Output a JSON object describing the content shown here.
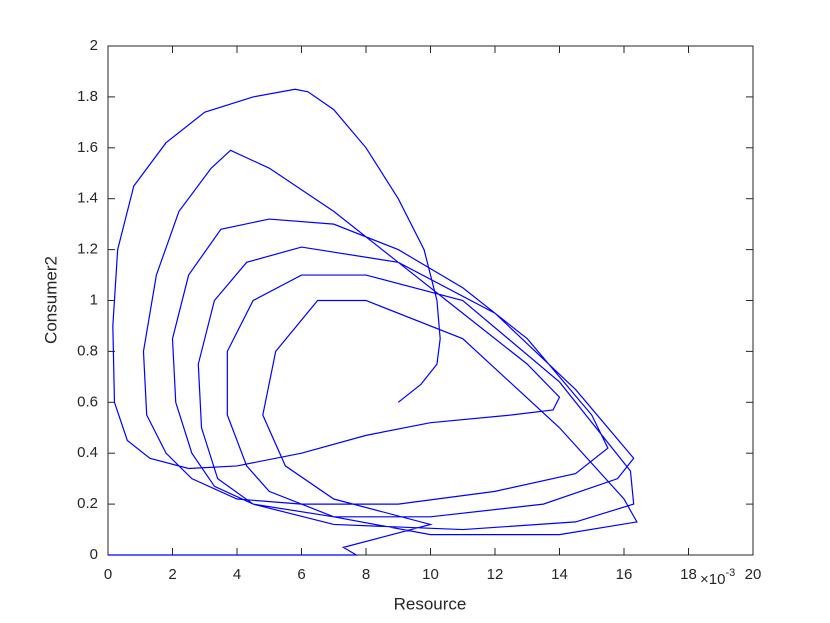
{
  "chart_data": {
    "type": "line",
    "x_label": "Resource",
    "y_label": "Consumer2",
    "x_multiplier": {
      "base": "×10",
      "exponent": "-3"
    },
    "xlim": [
      0,
      20
    ],
    "xticks": [
      0,
      2,
      4,
      6,
      8,
      10,
      12,
      14,
      16,
      18,
      20
    ],
    "ylim": [
      0,
      2
    ],
    "yticks": [
      0,
      0.2,
      0.4,
      0.6,
      0.8,
      1,
      1.2,
      1.4,
      1.6,
      1.8,
      2
    ],
    "grid": false,
    "x": [
      9,
      9.7,
      10.2,
      10.3,
      10.2,
      9.8,
      9,
      8,
      7,
      6.2,
      5.8,
      4.5,
      3,
      1.8,
      0.8,
      0.3,
      0.15,
      0.2,
      0.6,
      1.3,
      2.5,
      4,
      6,
      8,
      10,
      12.5,
      13.8,
      14,
      13,
      11,
      9,
      7,
      5,
      3.8,
      3.2,
      2.2,
      1.5,
      1.1,
      1.2,
      1.8,
      2.6,
      4,
      6,
      9,
      12,
      14.5,
      15.5,
      15,
      13,
      11,
      9,
      7,
      5,
      3.5,
      2.5,
      2,
      2.1,
      2.6,
      3.3,
      4.5,
      7,
      10,
      13.5,
      15.8,
      16.3,
      14.5,
      12,
      9,
      6,
      4.3,
      3.3,
      2.8,
      2.9,
      3.4,
      4.5,
      7,
      11,
      14.5,
      16.3,
      16.2,
      14,
      11,
      8,
      6,
      4.5,
      3.7,
      3.7,
      4.3,
      5,
      7,
      10,
      14,
      16.4,
      16,
      14,
      11,
      8,
      6.5,
      5.2,
      4.8,
      5.5,
      7,
      10,
      8.5,
      7.3,
      7.7,
      4,
      0
    ],
    "series": [
      {
        "color": "#0000ff",
        "values": [
          0.6,
          0.67,
          0.75,
          0.85,
          1.0,
          1.2,
          1.4,
          1.6,
          1.75,
          1.82,
          1.83,
          1.8,
          1.74,
          1.62,
          1.45,
          1.2,
          0.9,
          0.6,
          0.45,
          0.38,
          0.34,
          0.35,
          0.4,
          0.47,
          0.52,
          0.55,
          0.57,
          0.62,
          0.75,
          0.95,
          1.15,
          1.35,
          1.52,
          1.59,
          1.52,
          1.35,
          1.1,
          0.8,
          0.55,
          0.4,
          0.3,
          0.22,
          0.2,
          0.2,
          0.25,
          0.32,
          0.42,
          0.55,
          0.85,
          1.05,
          1.2,
          1.3,
          1.32,
          1.28,
          1.1,
          0.85,
          0.6,
          0.4,
          0.27,
          0.2,
          0.15,
          0.15,
          0.2,
          0.3,
          0.38,
          0.65,
          0.95,
          1.15,
          1.21,
          1.15,
          1.0,
          0.75,
          0.5,
          0.3,
          0.2,
          0.12,
          0.1,
          0.13,
          0.2,
          0.33,
          0.68,
          1.0,
          1.1,
          1.1,
          1.0,
          0.8,
          0.55,
          0.35,
          0.25,
          0.15,
          0.08,
          0.08,
          0.13,
          0.22,
          0.5,
          0.85,
          1.0,
          1.0,
          0.8,
          0.55,
          0.35,
          0.22,
          0.12,
          0.07,
          0.03,
          0,
          0,
          0
        ]
      }
    ]
  }
}
